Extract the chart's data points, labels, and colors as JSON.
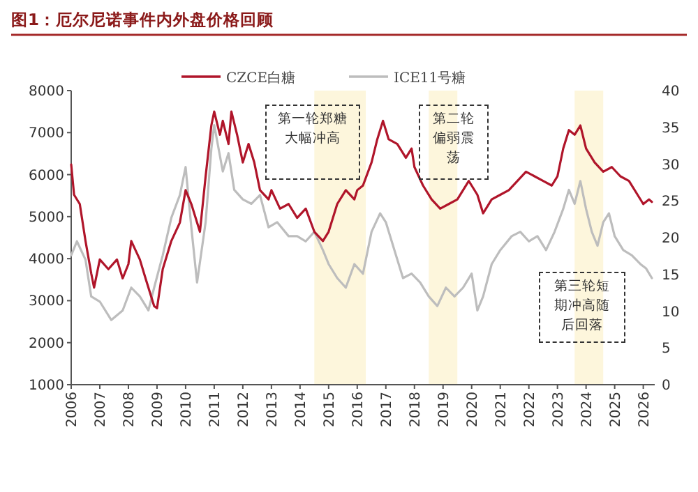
{
  "chart_data": {
    "type": "line",
    "title": "图1：厄尔尼诺事件内外盘价格回顾",
    "xlim": [
      2006,
      2026.4
    ],
    "xticks": [
      2006,
      2007,
      2008,
      2009,
      2010,
      2011,
      2012,
      2013,
      2014,
      2015,
      2016,
      2017,
      2018,
      2019,
      2020,
      2021,
      2022,
      2023,
      2024,
      2025,
      2026
    ],
    "ylim": [
      1000,
      8000
    ],
    "yticks": [
      1000,
      2000,
      3000,
      4000,
      5000,
      6000,
      7000,
      8000
    ],
    "y2lim": [
      0,
      40
    ],
    "y2ticks": [
      0,
      5,
      10,
      15,
      20,
      25,
      30,
      35,
      40
    ],
    "legend": "top",
    "line_style": "solid",
    "marker": "none",
    "series": [
      {
        "name": "CZCE白糖",
        "color": "#b0152a",
        "x": [
          2006.0,
          2006.1,
          2006.3,
          2006.5,
          2006.7,
          2006.8,
          2007.0,
          2007.3,
          2007.6,
          2007.8,
          2008.0,
          2008.1,
          2008.4,
          2008.6,
          2008.9,
          2009.0,
          2009.2,
          2009.5,
          2009.8,
          2010.0,
          2010.2,
          2010.5,
          2010.7,
          2010.9,
          2011.0,
          2011.2,
          2011.3,
          2011.5,
          2011.6,
          2011.8,
          2012.0,
          2012.2,
          2012.4,
          2012.6,
          2012.9,
          2013.0,
          2013.3,
          2013.6,
          2013.9,
          2014.2,
          2014.5,
          2014.8,
          2015.0,
          2015.3,
          2015.6,
          2015.9,
          2016.0,
          2016.2,
          2016.5,
          2016.7,
          2016.9,
          2017.1,
          2017.4,
          2017.7,
          2017.9,
          2018.0,
          2018.3,
          2018.6,
          2018.9,
          2019.2,
          2019.5,
          2019.9,
          2020.0,
          2020.2,
          2020.4,
          2020.7,
          2021.0,
          2021.3,
          2021.6,
          2021.9,
          2022.2,
          2022.5,
          2022.8,
          2023.0,
          2023.2,
          2023.4,
          2023.6,
          2023.8,
          2024.0,
          2024.3,
          2024.6,
          2024.9,
          2025.2,
          2025.5,
          2025.8,
          2026.0,
          2026.2,
          2026.3
        ],
        "values": [
          6240,
          5520,
          5300,
          4420,
          3650,
          3310,
          3980,
          3750,
          3980,
          3530,
          3870,
          4420,
          3980,
          3530,
          2870,
          2820,
          3750,
          4420,
          4860,
          5630,
          5300,
          4640,
          5960,
          7170,
          7500,
          6950,
          7280,
          6730,
          7500,
          6950,
          6290,
          6730,
          6290,
          5630,
          5410,
          5630,
          5190,
          5300,
          4970,
          5190,
          4640,
          4420,
          4640,
          5300,
          5630,
          5410,
          5630,
          5740,
          6290,
          6840,
          7280,
          6840,
          6730,
          6400,
          6620,
          6180,
          5740,
          5410,
          5190,
          5300,
          5410,
          5850,
          5740,
          5520,
          5080,
          5410,
          5520,
          5630,
          5850,
          6070,
          5960,
          5850,
          5740,
          5960,
          6620,
          7060,
          6950,
          7170,
          6620,
          6290,
          6070,
          6180,
          5960,
          5850,
          5520,
          5300,
          5410,
          5350
        ]
      },
      {
        "name": "ICE11号糖",
        "color": "#bdbdbd",
        "axis": "y2",
        "x": [
          2006.0,
          2006.2,
          2006.5,
          2006.7,
          2007.0,
          2007.4,
          2007.8,
          2008.1,
          2008.4,
          2008.7,
          2008.9,
          2009.2,
          2009.5,
          2009.8,
          2010.0,
          2010.2,
          2010.4,
          2010.7,
          2010.9,
          2011.0,
          2011.3,
          2011.5,
          2011.7,
          2012.0,
          2012.3,
          2012.6,
          2012.9,
          2013.2,
          2013.6,
          2013.9,
          2014.2,
          2014.5,
          2014.8,
          2015.0,
          2015.3,
          2015.6,
          2015.9,
          2016.2,
          2016.5,
          2016.8,
          2017.0,
          2017.3,
          2017.6,
          2017.9,
          2018.2,
          2018.5,
          2018.8,
          2019.1,
          2019.4,
          2019.7,
          2020.0,
          2020.2,
          2020.4,
          2020.7,
          2021.0,
          2021.4,
          2021.7,
          2022.0,
          2022.3,
          2022.6,
          2022.9,
          2023.2,
          2023.4,
          2023.6,
          2023.8,
          2024.0,
          2024.2,
          2024.4,
          2024.6,
          2024.8,
          2025.0,
          2025.3,
          2025.6,
          2025.9,
          2026.1,
          2026.3
        ],
        "values": [
          17.6,
          19.5,
          17.0,
          12.0,
          11.3,
          8.8,
          10.1,
          13.2,
          12.0,
          10.1,
          13.2,
          17.6,
          22.7,
          25.8,
          29.6,
          21.4,
          13.9,
          22.1,
          32.1,
          35.3,
          29.0,
          31.5,
          26.5,
          25.2,
          24.6,
          25.8,
          21.4,
          22.1,
          20.2,
          20.2,
          19.5,
          20.8,
          18.3,
          16.4,
          14.5,
          13.2,
          16.4,
          15.1,
          20.8,
          23.3,
          22.1,
          18.3,
          14.5,
          15.1,
          13.9,
          12.0,
          10.7,
          13.2,
          12.0,
          13.2,
          15.1,
          10.1,
          12.0,
          16.4,
          18.3,
          20.2,
          20.8,
          19.5,
          20.2,
          18.3,
          20.8,
          23.9,
          26.5,
          24.6,
          27.7,
          23.9,
          20.8,
          18.9,
          22.1,
          23.3,
          20.2,
          18.3,
          17.6,
          16.4,
          15.8,
          14.5
        ]
      }
    ],
    "bands": [
      {
        "axis": "x",
        "from": 2014.5,
        "to": 2016.3,
        "color": "#fdf6dc"
      },
      {
        "axis": "x",
        "from": 2018.5,
        "to": 2019.5,
        "color": "#fdf6dc"
      },
      {
        "axis": "x",
        "from": 2023.6,
        "to": 2024.6,
        "color": "#fdf6dc"
      }
    ],
    "annotations": [
      "第一轮郑糖大幅冲高",
      "第二轮偏弱震荡",
      "第三轮短期冲高随后回落"
    ]
  }
}
